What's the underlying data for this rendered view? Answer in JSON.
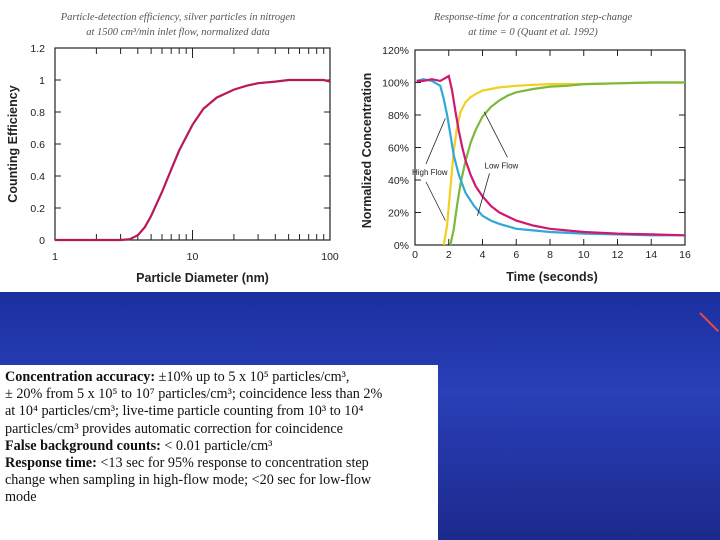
{
  "chart_data": [
    {
      "type": "line",
      "title": "Particle-detection efficiency, silver particles in nitrogen",
      "subtitle": "at 1500 cm³/min inlet flow, normalized data",
      "xlabel": "Particle Diameter (nm)",
      "ylabel": "Counting Efficiency",
      "xscale": "log",
      "xlim": [
        1,
        100
      ],
      "ylim": [
        0,
        1.2
      ],
      "x_tick_labels": [
        "1",
        "10",
        "100"
      ],
      "y_tick_labels": [
        "0",
        "0.2",
        "0.4",
        "0.6",
        "0.8",
        "1",
        "1.2"
      ],
      "y_ticks": [
        0,
        0.2,
        0.4,
        0.6,
        0.8,
        1.0,
        1.2
      ],
      "series": [
        {
          "color": "#b8185a",
          "x": [
            1,
            2,
            3,
            3.5,
            4,
            4.5,
            5,
            6,
            7,
            8,
            10,
            12,
            15,
            20,
            25,
            30,
            40,
            50,
            60,
            70,
            80,
            90,
            100
          ],
          "y": [
            0,
            0,
            0,
            0.005,
            0.03,
            0.08,
            0.15,
            0.3,
            0.44,
            0.56,
            0.72,
            0.82,
            0.89,
            0.94,
            0.965,
            0.98,
            0.99,
            1.0,
            1.0,
            1.0,
            1.0,
            1.0,
            0.99
          ]
        }
      ]
    },
    {
      "type": "line",
      "title": "Response-time for a concentration step-change",
      "subtitle": "at time = 0 (Quant et al. 1992)",
      "xlabel": "Time (seconds)",
      "ylabel": "Normalized Concentration",
      "xlim": [
        0,
        16
      ],
      "ylim": [
        0,
        120
      ],
      "x_tick_labels": [
        "0",
        "2",
        "4",
        "6",
        "8",
        "10",
        "12",
        "14",
        "16"
      ],
      "x_ticks": [
        0,
        2,
        4,
        6,
        8,
        10,
        12,
        14,
        16
      ],
      "y_tick_labels": [
        "0%",
        "20%",
        "40%",
        "60%",
        "80%",
        "100%",
        "120%"
      ],
      "y_ticks": [
        0,
        20,
        40,
        60,
        80,
        100,
        120
      ],
      "annotations": [
        "High Flow",
        "Low Flow"
      ],
      "series": [
        {
          "color": "#f0d020",
          "x": [
            1.7,
            1.9,
            2.1,
            2.3,
            2.5,
            2.7,
            3.0,
            3.3,
            3.6,
            4,
            4.5,
            5,
            6,
            7,
            8,
            10,
            12,
            14,
            16
          ],
          "y": [
            0,
            12,
            35,
            58,
            73,
            82,
            88,
            91,
            93,
            95,
            96,
            97,
            98,
            98.5,
            99,
            99,
            99.5,
            100,
            100
          ]
        },
        {
          "color": "#7cb83a",
          "x": [
            2.1,
            2.3,
            2.5,
            2.7,
            3.0,
            3.3,
            3.6,
            4,
            4.5,
            5,
            5.5,
            6,
            7,
            8,
            9,
            10,
            12,
            14,
            16
          ],
          "y": [
            0,
            10,
            25,
            38,
            52,
            63,
            71,
            79,
            85,
            89,
            92,
            94,
            96,
            97.5,
            98,
            99,
            99.5,
            100,
            100
          ]
        },
        {
          "color": "#30a8d8",
          "x": [
            0.1,
            0.5,
            1,
            1.5,
            1.7,
            1.9,
            2.1,
            2.3,
            2.6,
            3.0,
            3.5,
            4,
            4.5,
            5,
            6,
            7,
            8,
            10,
            12,
            14,
            16
          ],
          "y": [
            101,
            102,
            101,
            98,
            90,
            80,
            68,
            55,
            43,
            32,
            24,
            18,
            15,
            13,
            10,
            9,
            8,
            7,
            6.5,
            6,
            6
          ]
        },
        {
          "color": "#d01870",
          "x": [
            0.1,
            0.5,
            1,
            1.5,
            2.0,
            2.2,
            2.4,
            2.6,
            2.8,
            3.0,
            3.3,
            3.6,
            4,
            4.5,
            5,
            6,
            7,
            8,
            10,
            12,
            14,
            16
          ],
          "y": [
            101,
            101,
            102,
            101,
            104,
            95,
            82,
            70,
            60,
            52,
            43,
            36,
            30,
            24,
            20,
            15,
            12,
            10,
            8,
            7,
            6.5,
            6
          ]
        }
      ]
    }
  ],
  "specs": {
    "line1a_label": "Concentration accuracy:",
    "line1a_text": " ±10% up to 5 x 10⁵ particles/cm³,",
    "line2": "± 20% from 5 x 10⁵ to 10⁷ particles/cm³; coincidence less than 2%",
    "line3": "at 10⁴ particles/cm³; live-time particle counting from 10³ to 10⁴",
    "line4": "particles/cm³ provides automatic correction for coincidence",
    "line5_label": "False background counts:",
    "line5_text": " < 0.01 particle/cm³",
    "line6_label": "Response time:",
    "line6_text": " <13 sec for 95% response to concentration step",
    "line7": "change when sampling in high-flow mode; <20 sec for low-flow",
    "line8": "mode"
  }
}
